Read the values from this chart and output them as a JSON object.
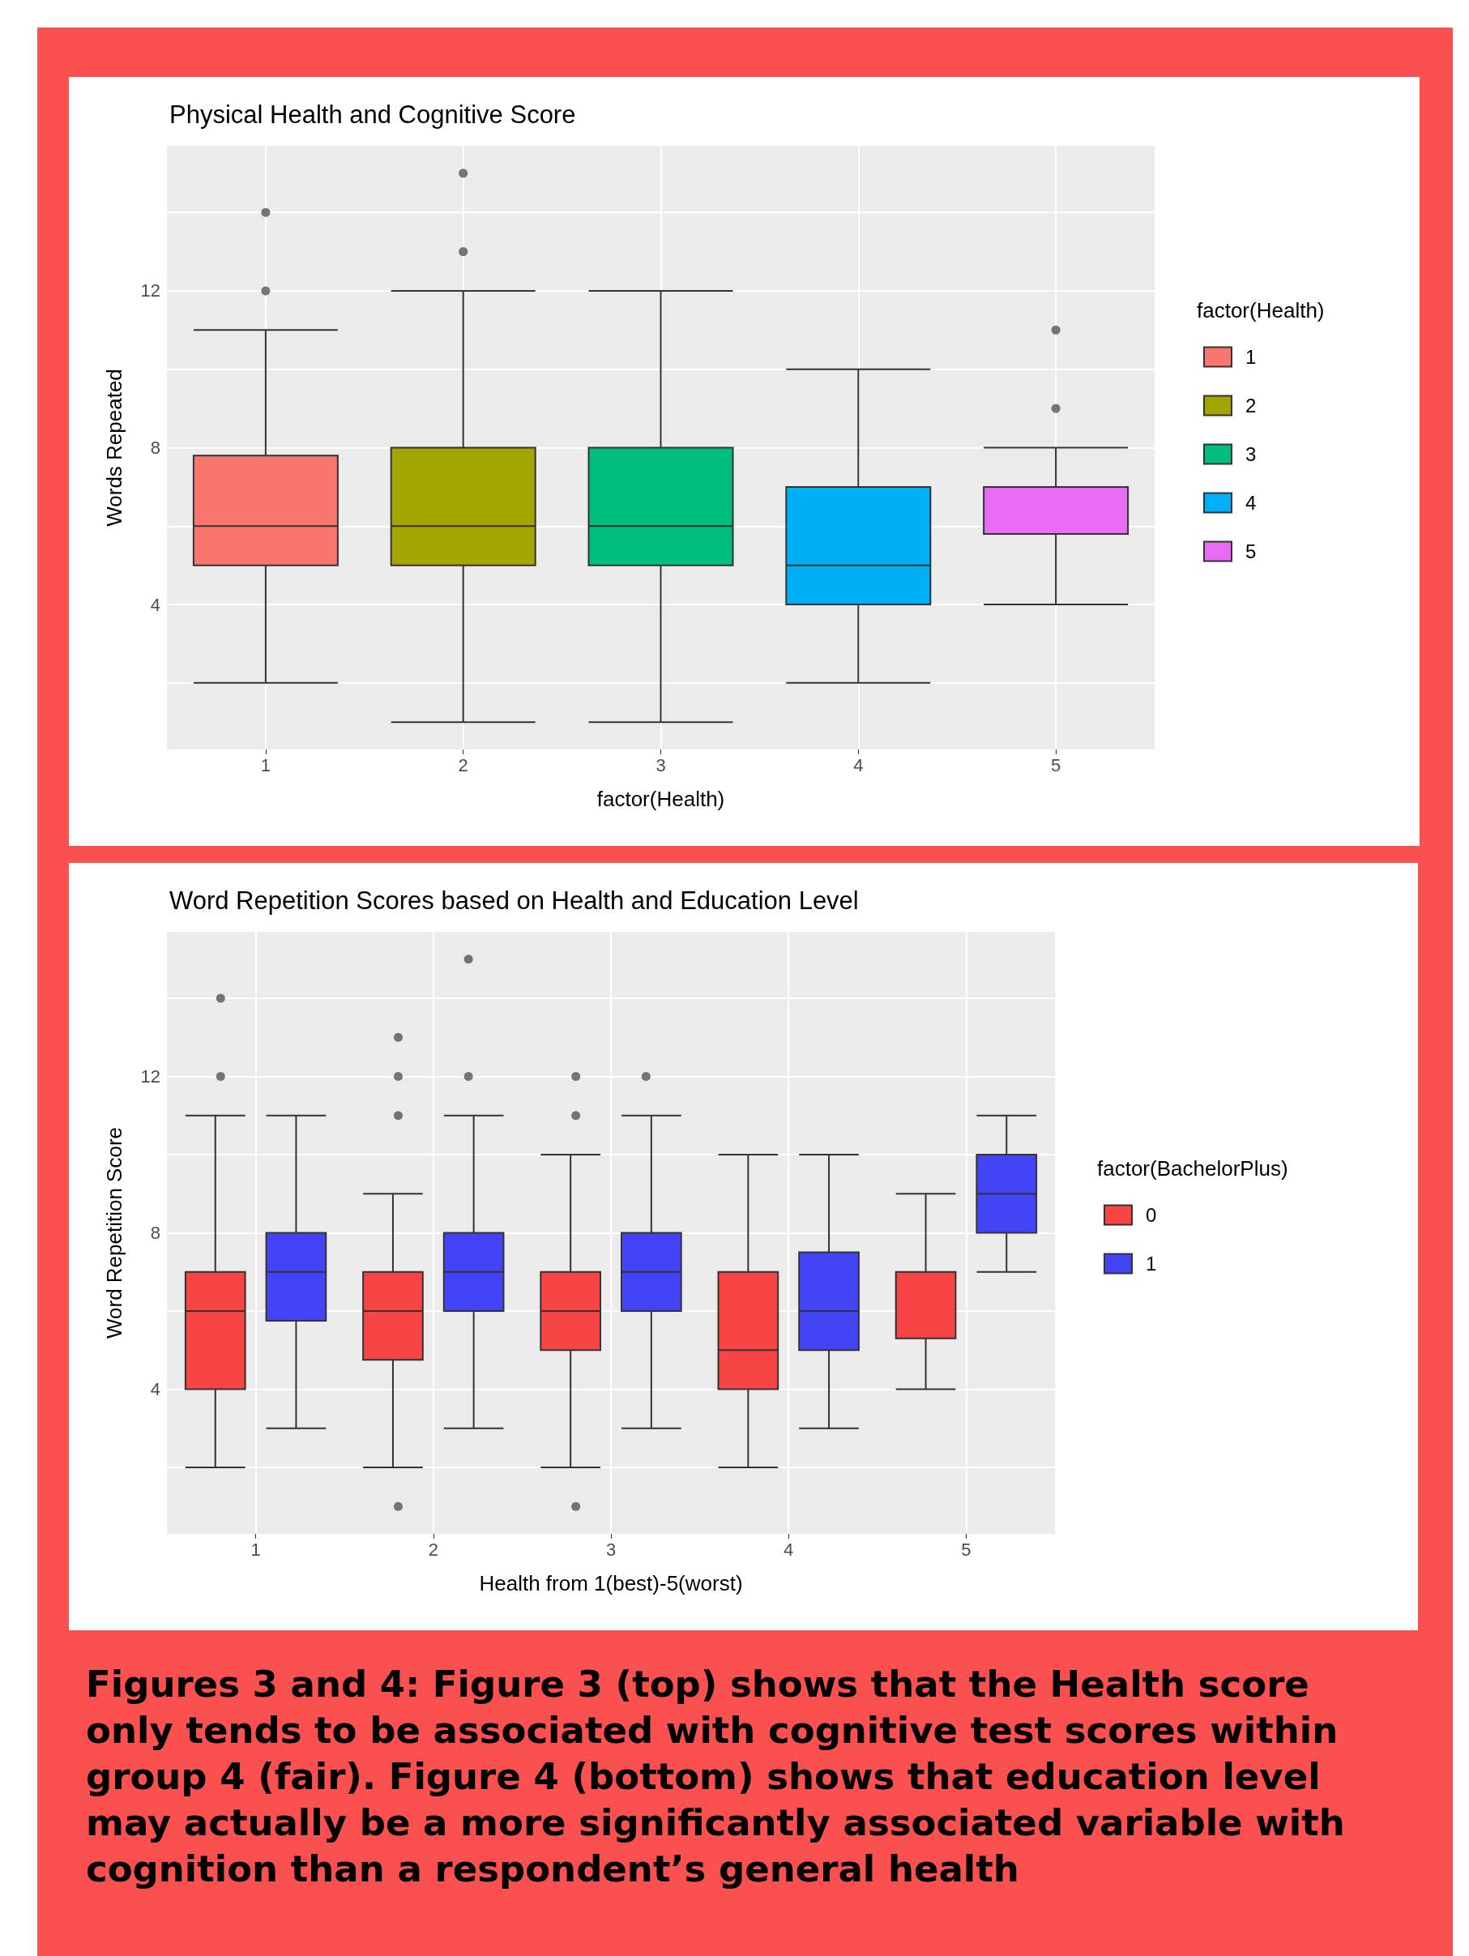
{
  "chart_data": [
    {
      "type": "box",
      "title": "Physical Health and Cognitive Score",
      "xlabel": "factor(Health)",
      "ylabel": "Words Repeated",
      "legend_title": "factor(Health)",
      "categories": [
        "1",
        "2",
        "3",
        "4",
        "5"
      ],
      "series": [
        {
          "name": "1",
          "color": "#f8766d",
          "boxes": [
            {
              "low": 2,
              "q1": 5,
              "median": 6,
              "q3": 7.8,
              "high": 11,
              "outliers": [
                12,
                14
              ]
            },
            null,
            null,
            null,
            null
          ]
        },
        {
          "name": "2",
          "color": "#a3a500",
          "boxes": [
            null,
            {
              "low": 1,
              "q1": 5,
              "median": 6,
              "q3": 8,
              "high": 12,
              "outliers": [
                13,
                15
              ]
            },
            null,
            null,
            null
          ]
        },
        {
          "name": "3",
          "color": "#00bf7d",
          "boxes": [
            null,
            null,
            {
              "low": 1,
              "q1": 5,
              "median": 6,
              "q3": 8,
              "high": 12
            },
            null,
            null
          ]
        },
        {
          "name": "4",
          "color": "#00b0f6",
          "boxes": [
            null,
            null,
            null,
            {
              "low": 2,
              "q1": 4,
              "median": 5,
              "q3": 7,
              "high": 10
            },
            null
          ]
        },
        {
          "name": "5",
          "color": "#e76bf3",
          "boxes": [
            null,
            null,
            null,
            null,
            {
              "low": 4,
              "q1": 5.8,
              "median": 7,
              "q3": 7,
              "high": 8,
              "outliers": [
                9,
                11
              ]
            }
          ]
        }
      ],
      "ylim": [
        0.3,
        15.7
      ],
      "yticks": [
        {
          "value": 2,
          "label": null
        },
        4,
        {
          "value": 6,
          "label": null
        },
        8,
        {
          "value": 10,
          "label": null
        },
        12,
        {
          "value": 14,
          "label": null
        }
      ],
      "grid": true,
      "legend": "right"
    },
    {
      "type": "box",
      "title": "Word Repetition Scores based on Health and Education Level",
      "xlabel": "Health from 1(best)-5(worst)",
      "ylabel": "Word Repetition Score",
      "legend_title": "factor(BachelorPlus)",
      "categories": [
        "1",
        "2",
        "3",
        "4",
        "5"
      ],
      "series": [
        {
          "name": "0",
          "color": "#f84444",
          "boxes": [
            {
              "low": 2,
              "q1": 4,
              "median": 6,
              "q3": 7,
              "high": 11,
              "outliers": [
                12,
                14
              ]
            },
            {
              "low": 2,
              "q1": 4.75,
              "median": 6,
              "q3": 7,
              "high": 9,
              "outliers": [
                1,
                11,
                12,
                13
              ]
            },
            {
              "low": 2,
              "q1": 5,
              "median": 6,
              "q3": 7,
              "high": 10,
              "outliers": [
                1,
                11,
                12
              ]
            },
            {
              "low": 2,
              "q1": 4,
              "median": 5,
              "q3": 7,
              "high": 10
            },
            {
              "low": 4,
              "q1": 5.3,
              "median": 7,
              "q3": 7,
              "high": 9
            }
          ]
        },
        {
          "name": "1",
          "color": "#4343f7",
          "boxes": [
            {
              "low": 3,
              "q1": 5.75,
              "median": 7,
              "q3": 8,
              "high": 11
            },
            {
              "low": 3,
              "q1": 6,
              "median": 7,
              "q3": 8,
              "high": 11,
              "outliers": [
                12,
                15
              ]
            },
            {
              "low": 3,
              "q1": 6,
              "median": 7,
              "q3": 8,
              "high": 11,
              "outliers": [
                12
              ]
            },
            {
              "low": 3,
              "q1": 5,
              "median": 6,
              "q3": 7.5,
              "high": 10
            },
            {
              "low": 7,
              "q1": 8,
              "median": 9,
              "q3": 10,
              "high": 11
            }
          ]
        }
      ],
      "ylim": [
        0.3,
        15.7
      ],
      "yticks": [
        {
          "value": 2,
          "label": null
        },
        4,
        {
          "value": 6,
          "label": null
        },
        8,
        {
          "value": 10,
          "label": null
        },
        12,
        {
          "value": 14,
          "label": null
        }
      ],
      "grid": true,
      "legend": "right",
      "annotations": [
        "Figures 3 and 4: Figure 3 (top) shows that the Health score only tends to be associated with cognitive test scores within group 4 (fair). Figure 4 (bottom) shows that education level may actually be a more significantly associated variable with cognition than a respondent’s general health"
      ]
    }
  ]
}
